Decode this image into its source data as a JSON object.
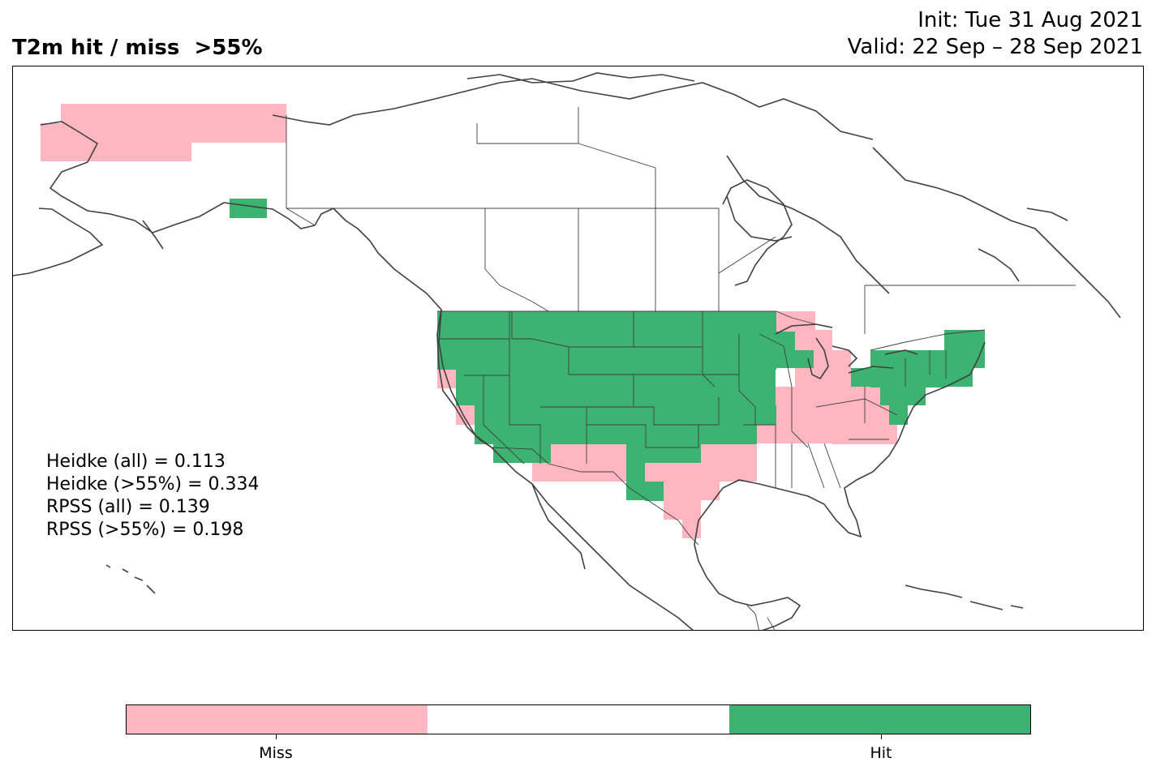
{
  "title": "T2m hit / miss  >55%",
  "init": "Init: Tue 31 Aug 2021",
  "valid": "Valid: 22 Sep – 28 Sep 2021",
  "stats": [
    "Heidke (all) = 0.113",
    "Heidke (>55%) = 0.334",
    "RPSS (all) = 0.139",
    "RPSS (>55%) = 0.198"
  ],
  "colors": {
    "miss": "#ffb6c1",
    "neutral": "#ffffff",
    "hit": "#3cb371",
    "coast": "#404040"
  },
  "colorbar": {
    "miss_label": "Miss",
    "hit_label": "Hit"
  },
  "map_regions": {
    "hit": [
      "US West",
      "Northern and Central Plains",
      "Upper Midwest",
      "Southwest",
      "Southern Plains",
      "Northeast US",
      "Western Alaska"
    ],
    "miss": [
      "Northern Alaska",
      "California coast",
      "New Mexico and Arizona border",
      "Texas",
      "Lower Mississippi Valley",
      "Ohio Valley",
      "Great Lakes",
      "Mid-Atlantic"
    ]
  }
}
